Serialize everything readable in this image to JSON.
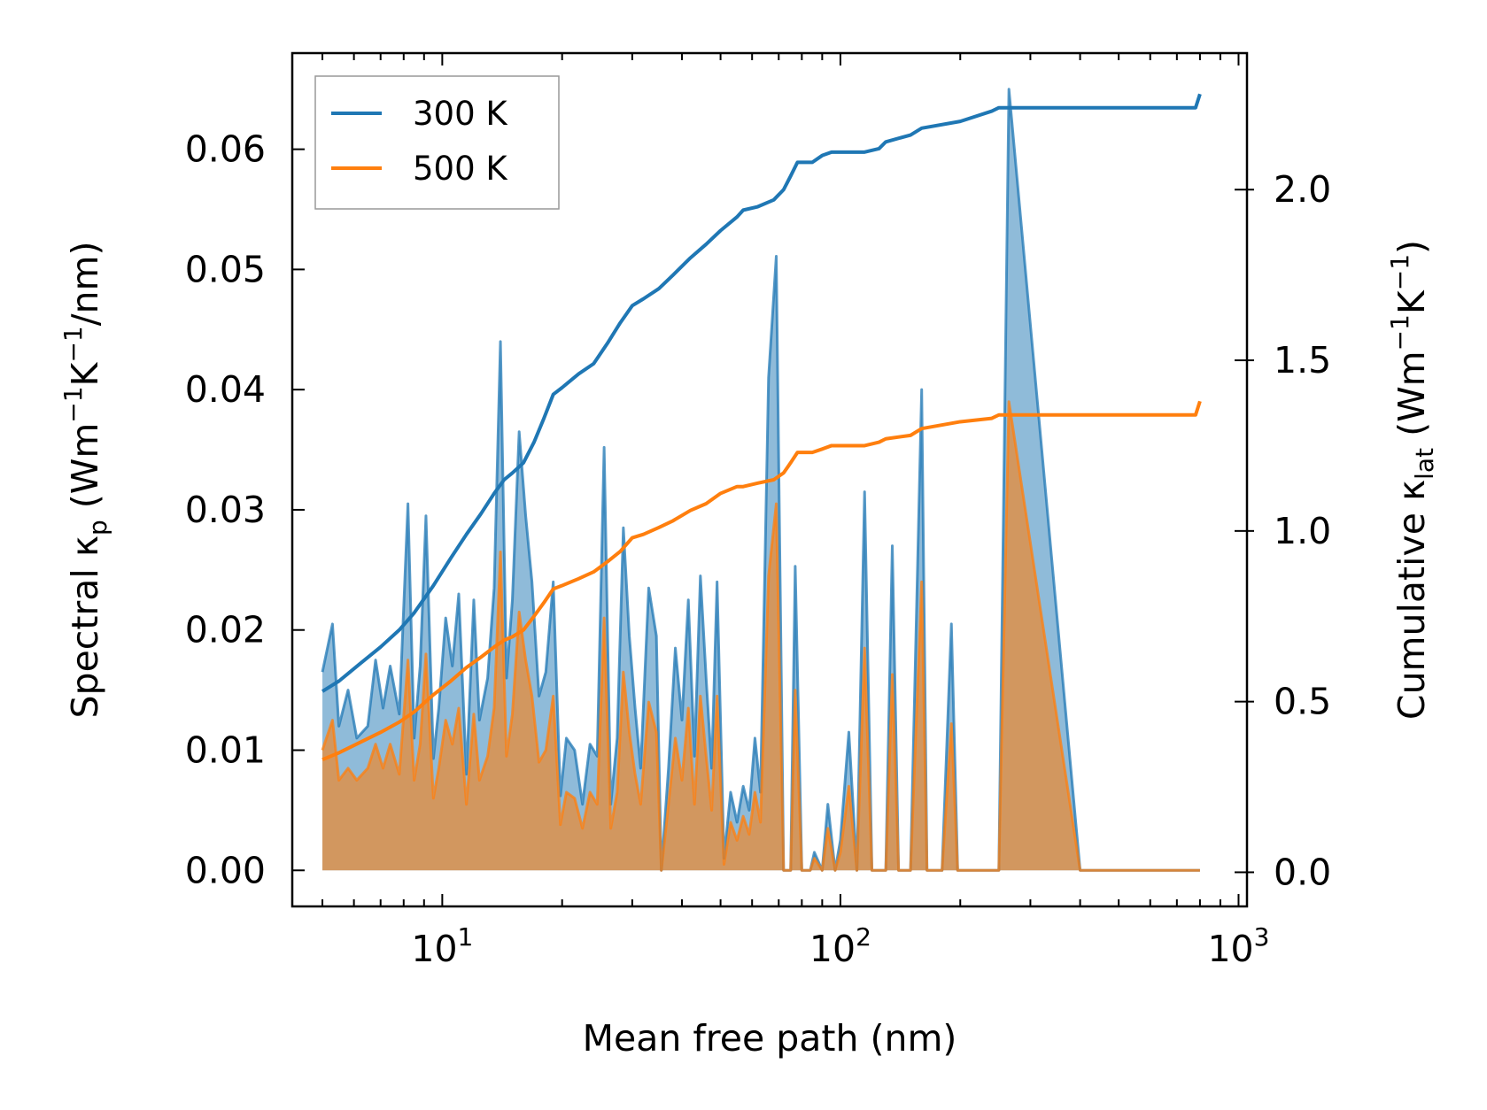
{
  "chart_data": {
    "type": "line",
    "title": "",
    "xlabel": "Mean free path (nm)",
    "xscale": "log",
    "xlim": [
      4.2,
      1050
    ],
    "xticks": [
      {
        "base": "10",
        "exp": "1",
        "value": 10
      },
      {
        "base": "10",
        "exp": "2",
        "value": 100
      },
      {
        "base": "10",
        "exp": "3",
        "value": 1000
      }
    ],
    "ylabel_left": {
      "main": "Spectral κ",
      "sub": "p",
      "units_a": " (Wm",
      "sup1": "−1",
      "units_b": "K",
      "sup2": "−1",
      "units_c": "/nm)"
    },
    "ylabel_right": {
      "main": "Cumulative κ",
      "sub": "lat",
      "units_a": " (Wm",
      "sup1": "−1",
      "units_b": "K",
      "sup2": "−1",
      "units_c": ")"
    },
    "ylim_left": [
      -0.003,
      0.068
    ],
    "ylim_right": [
      -0.1,
      2.4
    ],
    "yticks_left": [
      "0.00",
      "0.01",
      "0.02",
      "0.03",
      "0.04",
      "0.05",
      "0.06"
    ],
    "yticks_right": [
      "0.0",
      "0.5",
      "1.0",
      "1.5",
      "2.0"
    ],
    "legend": {
      "position": "top-left",
      "entries": [
        "300 K",
        "500 K"
      ]
    },
    "colors": {
      "300 K": "#1f77b4",
      "500 K": "#ff7f0e",
      "fill_300": "#1f77b4",
      "fill_500": "#ff7f0e"
    },
    "spectral_series": [
      {
        "name": "300 K",
        "x": [
          5.0,
          5.3,
          5.5,
          5.8,
          6.1,
          6.5,
          6.8,
          7.1,
          7.4,
          7.8,
          8.2,
          8.5,
          8.8,
          9.1,
          9.5,
          9.8,
          10.2,
          10.6,
          11.0,
          11.5,
          12.0,
          12.4,
          13.0,
          13.5,
          14.0,
          14.5,
          15.0,
          15.6,
          16.2,
          16.8,
          17.5,
          18.2,
          19.0,
          19.8,
          20.5,
          21.5,
          22.5,
          23.5,
          24.5,
          25.5,
          26.5,
          27.5,
          28.5,
          29.5,
          30.5,
          31.5,
          33.0,
          34.5,
          35.5,
          37.0,
          38.5,
          40.0,
          41.5,
          43.0,
          44.5,
          46.0,
          47.5,
          49.0,
          51.0,
          53.0,
          55.0,
          57.0,
          59.0,
          61.0,
          63.0,
          66.0,
          69.0,
          72.0,
          75.0,
          77.0,
          80.0,
          84.0,
          86.0,
          90.0,
          93.0,
          97.0,
          100.0,
          105.0,
          110.0,
          115.0,
          120.0,
          125.0,
          130.0,
          135.0,
          140.0,
          150.0,
          160.0,
          165.0,
          170.0,
          180.0,
          190.0,
          197.0,
          205.0,
          220.0,
          240.0,
          250.0,
          265.0,
          400.0,
          600.0,
          780.0,
          795.0,
          800.0
        ],
        "y": [
          0.0165,
          0.0205,
          0.012,
          0.015,
          0.011,
          0.012,
          0.0175,
          0.0135,
          0.017,
          0.013,
          0.0305,
          0.011,
          0.017,
          0.0295,
          0.0093,
          0.0135,
          0.021,
          0.017,
          0.023,
          0.008,
          0.0225,
          0.0125,
          0.016,
          0.0235,
          0.044,
          0.016,
          0.0225,
          0.0365,
          0.0295,
          0.024,
          0.0145,
          0.0165,
          0.024,
          0.0062,
          0.011,
          0.01,
          0.0055,
          0.0105,
          0.0095,
          0.0352,
          0.0055,
          0.011,
          0.0285,
          0.0195,
          0.0135,
          0.0085,
          0.0235,
          0.0195,
          0.0,
          0.0085,
          0.0185,
          0.0125,
          0.0225,
          0.0095,
          0.0245,
          0.016,
          0.0085,
          0.024,
          0.001,
          0.0065,
          0.004,
          0.007,
          0.005,
          0.011,
          0.0065,
          0.041,
          0.0511,
          0.0,
          0.0,
          0.0253,
          0.0,
          0.0,
          0.0015,
          0.0,
          0.0055,
          0.0,
          0.0025,
          0.0115,
          0.0,
          0.0315,
          0.0,
          0.0,
          0.0,
          0.027,
          0.0,
          0.0,
          0.04,
          0.0,
          0.0,
          0.0,
          0.0205,
          0.0,
          0.0,
          0.0,
          0.0,
          0.0,
          0.065,
          0.0,
          0.0,
          0.0,
          0.0,
          0.0
        ]
      },
      {
        "name": "500 K",
        "x": [
          5.0,
          5.3,
          5.5,
          5.8,
          6.1,
          6.5,
          6.8,
          7.1,
          7.4,
          7.8,
          8.2,
          8.5,
          8.8,
          9.1,
          9.5,
          9.8,
          10.2,
          10.6,
          11.0,
          11.5,
          12.0,
          12.4,
          13.0,
          13.5,
          14.0,
          14.5,
          15.0,
          15.6,
          16.2,
          16.8,
          17.5,
          18.2,
          19.0,
          19.8,
          20.5,
          21.5,
          22.5,
          23.5,
          24.5,
          25.5,
          26.5,
          27.5,
          28.5,
          29.5,
          30.5,
          31.5,
          33.0,
          34.5,
          35.5,
          37.0,
          38.5,
          40.0,
          41.5,
          43.0,
          44.5,
          46.0,
          47.5,
          49.0,
          51.0,
          53.0,
          55.0,
          57.0,
          59.0,
          61.0,
          63.0,
          66.0,
          69.0,
          72.0,
          75.0,
          77.0,
          80.0,
          84.0,
          86.0,
          90.0,
          93.0,
          97.0,
          100.0,
          105.0,
          110.0,
          115.0,
          120.0,
          125.0,
          130.0,
          135.0,
          140.0,
          150.0,
          160.0,
          165.0,
          170.0,
          180.0,
          190.0,
          197.0,
          205.0,
          220.0,
          240.0,
          250.0,
          265.0,
          400.0,
          600.0,
          780.0,
          795.0,
          800.0
        ],
        "y": [
          0.01,
          0.0125,
          0.0075,
          0.0085,
          0.0075,
          0.0085,
          0.0105,
          0.0085,
          0.0105,
          0.008,
          0.0175,
          0.0075,
          0.0105,
          0.018,
          0.006,
          0.0085,
          0.0125,
          0.0105,
          0.0135,
          0.0055,
          0.013,
          0.0075,
          0.0095,
          0.0135,
          0.0265,
          0.0095,
          0.013,
          0.0215,
          0.0175,
          0.0145,
          0.009,
          0.01,
          0.0145,
          0.0038,
          0.0065,
          0.006,
          0.0035,
          0.0065,
          0.0055,
          0.021,
          0.0035,
          0.0065,
          0.0165,
          0.0115,
          0.008,
          0.0055,
          0.014,
          0.0115,
          0.0,
          0.0055,
          0.011,
          0.0075,
          0.0135,
          0.0055,
          0.0145,
          0.0095,
          0.005,
          0.0145,
          0.0005,
          0.004,
          0.0025,
          0.0045,
          0.003,
          0.0065,
          0.004,
          0.0245,
          0.0305,
          0.0,
          0.0,
          0.015,
          0.0,
          0.0,
          0.001,
          0.0,
          0.0035,
          0.0,
          0.0015,
          0.007,
          0.0,
          0.0185,
          0.0,
          0.0,
          0.0,
          0.0163,
          0.0,
          0.0,
          0.024,
          0.0,
          0.0,
          0.0,
          0.0122,
          0.0,
          0.0,
          0.0,
          0.0,
          0.0,
          0.039,
          0.0,
          0.0,
          0.0,
          0.0,
          0.0
        ]
      }
    ],
    "cumulative_series": [
      {
        "name": "300 K",
        "x": [
          5.0,
          5.5,
          6.2,
          7.0,
          7.8,
          8.5,
          9.5,
          10.5,
          11.5,
          12.5,
          13.5,
          14.3,
          15.0,
          16.0,
          17.0,
          18.0,
          19.0,
          20.0,
          22.0,
          24.0,
          26.0,
          28.0,
          30.0,
          32.0,
          35.0,
          38.0,
          42.0,
          46.0,
          50.0,
          55.0,
          57.0,
          62.0,
          68.0,
          72.0,
          75.0,
          78.0,
          85.0,
          90.0,
          95.0,
          105.0,
          115.0,
          125.0,
          130.0,
          150.0,
          160.0,
          200.0,
          240.0,
          250.0,
          780.0,
          800.0
        ],
        "y": [
          0.53,
          0.56,
          0.61,
          0.66,
          0.71,
          0.76,
          0.84,
          0.92,
          0.99,
          1.05,
          1.11,
          1.15,
          1.17,
          1.2,
          1.26,
          1.33,
          1.4,
          1.42,
          1.46,
          1.49,
          1.55,
          1.61,
          1.66,
          1.68,
          1.71,
          1.75,
          1.8,
          1.84,
          1.88,
          1.92,
          1.94,
          1.95,
          1.97,
          2.0,
          2.04,
          2.08,
          2.08,
          2.1,
          2.11,
          2.11,
          2.11,
          2.12,
          2.14,
          2.16,
          2.18,
          2.2,
          2.23,
          2.24,
          2.24,
          2.28
        ]
      },
      {
        "name": "500 K",
        "x": [
          5.0,
          5.5,
          6.2,
          7.0,
          7.8,
          8.5,
          9.5,
          10.5,
          11.5,
          12.5,
          13.5,
          14.3,
          15.0,
          16.0,
          17.0,
          18.0,
          19.0,
          20.0,
          22.0,
          24.0,
          26.0,
          28.0,
          30.0,
          32.0,
          35.0,
          38.0,
          42.0,
          46.0,
          50.0,
          55.0,
          57.0,
          62.0,
          68.0,
          72.0,
          75.0,
          78.0,
          85.0,
          90.0,
          95.0,
          105.0,
          115.0,
          125.0,
          130.0,
          150.0,
          160.0,
          200.0,
          240.0,
          250.0,
          780.0,
          800.0
        ],
        "y": [
          0.33,
          0.35,
          0.38,
          0.41,
          0.44,
          0.47,
          0.52,
          0.56,
          0.6,
          0.63,
          0.66,
          0.68,
          0.69,
          0.71,
          0.75,
          0.79,
          0.83,
          0.84,
          0.86,
          0.88,
          0.91,
          0.94,
          0.98,
          0.99,
          1.01,
          1.03,
          1.06,
          1.08,
          1.11,
          1.13,
          1.13,
          1.14,
          1.15,
          1.17,
          1.2,
          1.23,
          1.23,
          1.24,
          1.25,
          1.25,
          1.25,
          1.26,
          1.27,
          1.28,
          1.3,
          1.32,
          1.33,
          1.34,
          1.34,
          1.38
        ]
      }
    ]
  }
}
